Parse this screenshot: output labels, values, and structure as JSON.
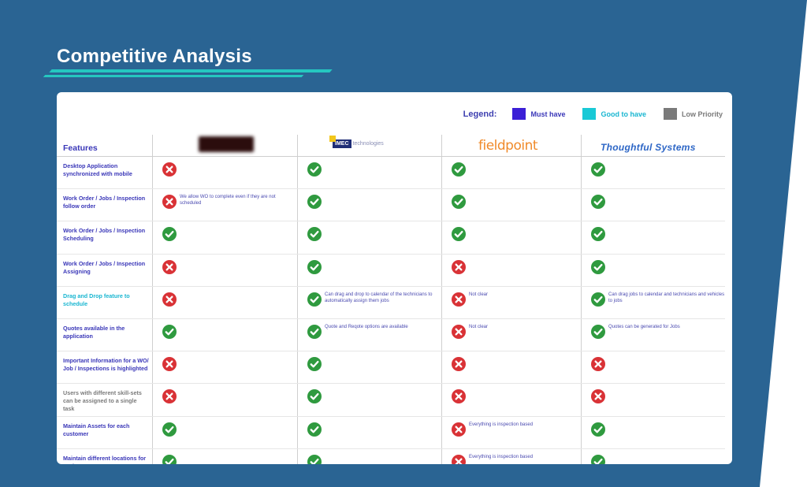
{
  "title": "Competitive Analysis",
  "legend": {
    "label": "Legend:",
    "items": [
      {
        "label": "Must have",
        "color": "#3b1fd6"
      },
      {
        "label": "Good to have",
        "color": "#19c9d6"
      },
      {
        "label": "Low Priority",
        "color": "#7a7a7a"
      }
    ]
  },
  "header": {
    "features": "Features",
    "vendors": [
      "",
      "IMEC technologies",
      "fieldpoint",
      "Thoughtful Systems"
    ],
    "imec_mark": "IMEC",
    "imec_word": "technologies"
  },
  "colors": {
    "check": "#2f9a3f",
    "cross": "#d93236",
    "must": "#3a37b8",
    "good": "#19b6d1",
    "low": "#7a7a7a"
  },
  "rows": [
    {
      "feature": "Desktop Application synchronized with mobile",
      "priority": "must",
      "cells": [
        {
          "v": "no",
          "note": ""
        },
        {
          "v": "yes",
          "note": ""
        },
        {
          "v": "yes",
          "note": ""
        },
        {
          "v": "yes",
          "note": ""
        }
      ]
    },
    {
      "feature": "Work Order / Jobs / Inspection follow order",
      "priority": "must",
      "cells": [
        {
          "v": "no",
          "note": "We allow WO to complete even if they are not scheduled"
        },
        {
          "v": "yes",
          "note": ""
        },
        {
          "v": "yes",
          "note": ""
        },
        {
          "v": "yes",
          "note": ""
        }
      ]
    },
    {
      "feature": "Work Order / Jobs / Inspection  Scheduling",
      "priority": "must",
      "cells": [
        {
          "v": "yes",
          "note": ""
        },
        {
          "v": "yes",
          "note": ""
        },
        {
          "v": "yes",
          "note": ""
        },
        {
          "v": "yes",
          "note": ""
        }
      ]
    },
    {
      "feature": "Work Order / Jobs / Inspection  Assigning",
      "priority": "must",
      "cells": [
        {
          "v": "no",
          "note": ""
        },
        {
          "v": "yes",
          "note": ""
        },
        {
          "v": "no",
          "note": ""
        },
        {
          "v": "yes",
          "note": ""
        }
      ]
    },
    {
      "feature": "Drag and Drop feature to schedule",
      "priority": "good",
      "cells": [
        {
          "v": "no",
          "note": ""
        },
        {
          "v": "yes",
          "note": "Can drag and drop to calendar of the technicians to automatically assign them jobs"
        },
        {
          "v": "no",
          "note": "Not clear"
        },
        {
          "v": "yes",
          "note": "Can drag jobs to calendar and technicians and vehicles to jobs"
        }
      ]
    },
    {
      "feature": "Quotes available in the application",
      "priority": "must",
      "cells": [
        {
          "v": "yes",
          "note": ""
        },
        {
          "v": "yes",
          "note": "Quote and Reqote options are available"
        },
        {
          "v": "no",
          "note": "Not clear"
        },
        {
          "v": "yes",
          "note": "Quotes can be generated for Jobs"
        }
      ]
    },
    {
      "feature": "Important Information for a WO/ Job / Inspections is highlighted",
      "priority": "must",
      "cells": [
        {
          "v": "no",
          "note": ""
        },
        {
          "v": "yes",
          "note": ""
        },
        {
          "v": "no",
          "note": ""
        },
        {
          "v": "no",
          "note": ""
        }
      ]
    },
    {
      "feature": "Users with different skill-sets can be assigned to a single task",
      "priority": "low",
      "cells": [
        {
          "v": "no",
          "note": ""
        },
        {
          "v": "yes",
          "note": ""
        },
        {
          "v": "no",
          "note": ""
        },
        {
          "v": "no",
          "note": ""
        }
      ]
    },
    {
      "feature": "Maintain Assets for each customer",
      "priority": "must",
      "cells": [
        {
          "v": "yes",
          "note": ""
        },
        {
          "v": "yes",
          "note": ""
        },
        {
          "v": "no",
          "note": "Everything is inspection based"
        },
        {
          "v": "yes",
          "note": ""
        }
      ]
    },
    {
      "feature": "Maintain different locations for each customer",
      "priority": "must",
      "cells": [
        {
          "v": "yes",
          "note": ""
        },
        {
          "v": "yes",
          "note": ""
        },
        {
          "v": "no",
          "note": "Everything is inspection based"
        },
        {
          "v": "yes",
          "note": ""
        }
      ]
    }
  ]
}
